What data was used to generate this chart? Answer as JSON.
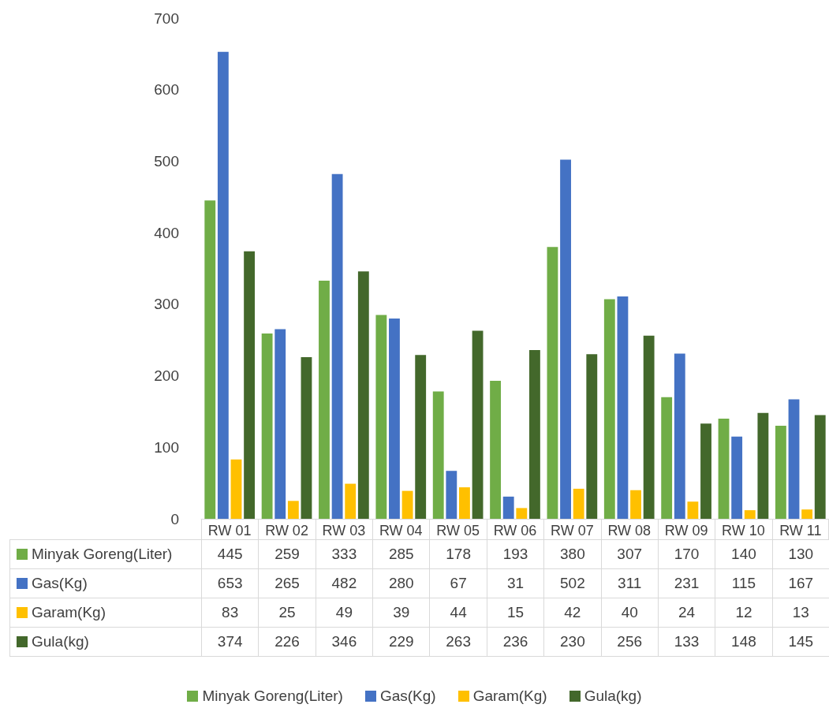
{
  "chart_data": {
    "type": "bar",
    "categories": [
      "RW 01",
      "RW 02",
      "RW 03",
      "RW 04",
      "RW 05",
      "RW 06",
      "RW 07",
      "RW 08",
      "RW 09",
      "RW 10",
      "RW 11"
    ],
    "series": [
      {
        "name": "Minyak Goreng(Liter)",
        "color": "#70ad47",
        "values": [
          445,
          259,
          333,
          285,
          178,
          193,
          380,
          307,
          170,
          140,
          130
        ]
      },
      {
        "name": "Gas(Kg)",
        "color": "#4472c4",
        "values": [
          653,
          265,
          482,
          280,
          67,
          31,
          502,
          311,
          231,
          115,
          167
        ]
      },
      {
        "name": "Garam(Kg)",
        "color": "#ffc000",
        "values": [
          83,
          25,
          49,
          39,
          44,
          15,
          42,
          40,
          24,
          12,
          13
        ]
      },
      {
        "name": "Gula(kg)",
        "color": "#43682b",
        "values": [
          374,
          226,
          346,
          229,
          263,
          236,
          230,
          256,
          133,
          148,
          145
        ]
      }
    ],
    "ylim": [
      0,
      700
    ],
    "yticks": [
      0,
      100,
      200,
      300,
      400,
      500,
      600,
      700
    ],
    "data_labels": true,
    "legend": "bottom"
  }
}
